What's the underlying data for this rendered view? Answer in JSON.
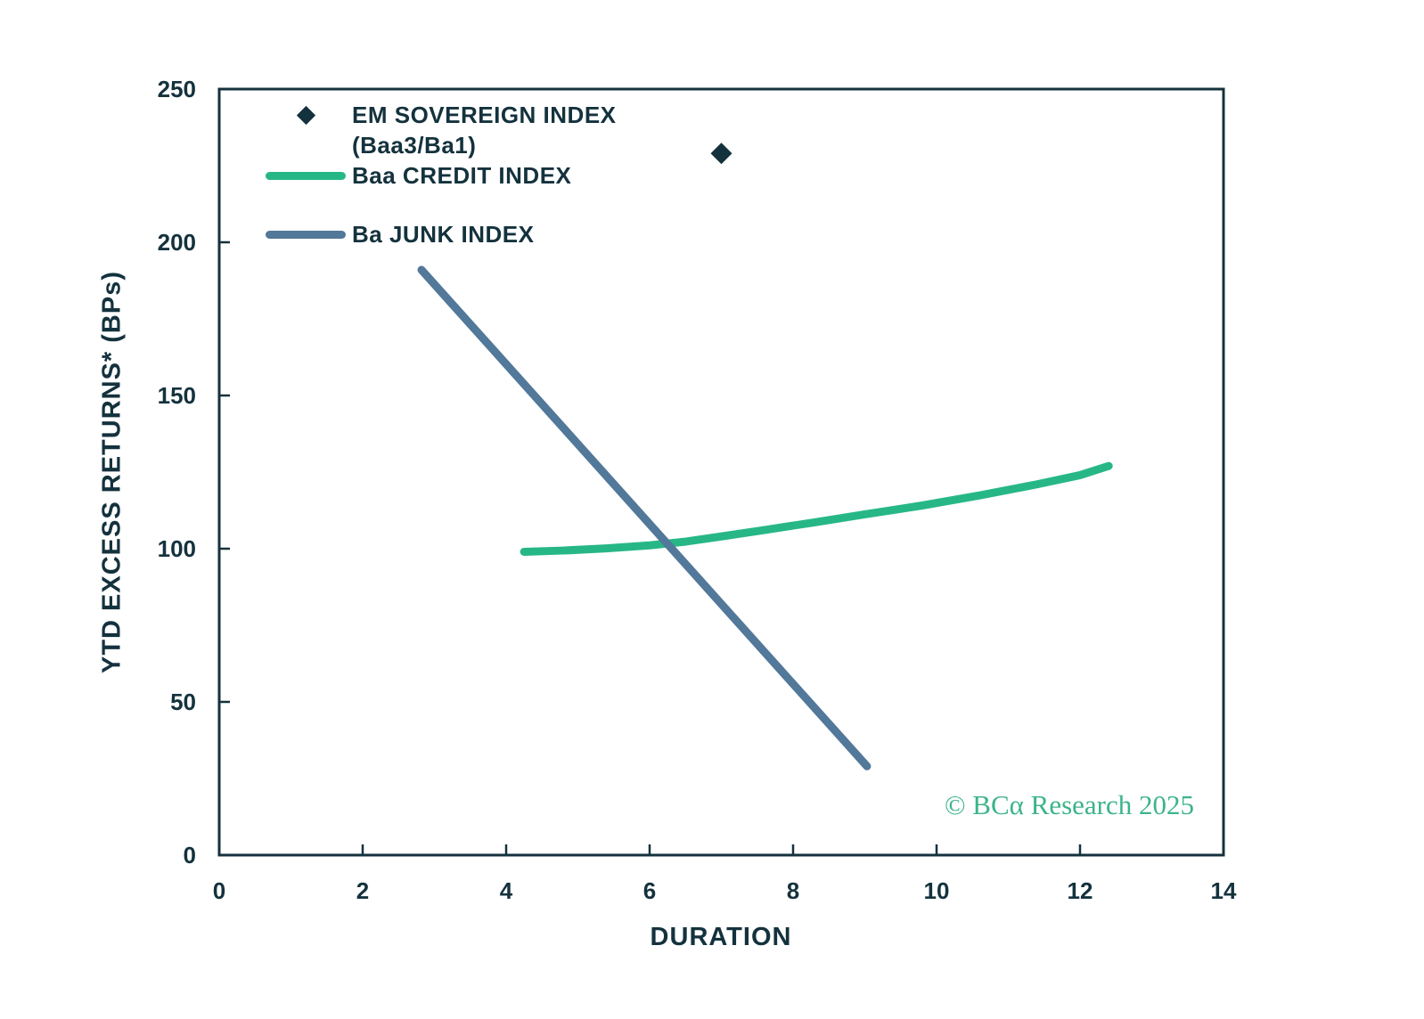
{
  "colors": {
    "ink": "#14323d",
    "green": "#27b787",
    "slate": "#52789a",
    "watermark_green": "#3cb489",
    "background": "#ffffff"
  },
  "chart_data": {
    "type": "line",
    "title": "",
    "xlabel": "DURATION",
    "ylabel": "YTD EXCESS RETURNS* (BPs)",
    "xlim": [
      0,
      14
    ],
    "ylim": [
      0,
      250
    ],
    "x_ticks": [
      0,
      2,
      4,
      6,
      8,
      10,
      12,
      14
    ],
    "y_ticks": [
      0,
      50,
      100,
      150,
      200,
      250
    ],
    "grid": false,
    "legend_position": "upper-left-inside",
    "watermark": "© BCα Research 2025",
    "series": [
      {
        "name": "EM SOVEREIGN INDEX (Baa3/Ba1)",
        "type": "scatter",
        "marker": "diamond",
        "color": "#14323d",
        "points": [
          [
            7.0,
            229
          ]
        ]
      },
      {
        "name": "Baa CREDIT INDEX",
        "type": "line",
        "color": "#27b787",
        "points": [
          [
            4.25,
            99
          ],
          [
            4.8,
            99.4
          ],
          [
            5.4,
            100.1
          ],
          [
            6.0,
            101.1
          ],
          [
            6.5,
            102.3
          ],
          [
            7.0,
            104.0
          ],
          [
            7.6,
            106.1
          ],
          [
            8.3,
            108.6
          ],
          [
            9.0,
            111.2
          ],
          [
            9.8,
            114.1
          ],
          [
            10.6,
            117.4
          ],
          [
            11.4,
            121.0
          ],
          [
            12.0,
            124.0
          ],
          [
            12.4,
            127.0
          ]
        ]
      },
      {
        "name": "Ba JUNK INDEX",
        "type": "line",
        "color": "#52789a",
        "points": [
          [
            2.82,
            191
          ],
          [
            9.03,
            29
          ]
        ]
      }
    ]
  },
  "legend": {
    "items": [
      {
        "line1": "EM SOVEREIGN INDEX",
        "line2": "(Baa3/Ba1)",
        "marker": "diamond"
      },
      {
        "line1": "Baa CREDIT INDEX",
        "line2": "",
        "marker": "line-green"
      },
      {
        "line1": "Ba JUNK INDEX",
        "line2": "",
        "marker": "line-slate"
      }
    ]
  }
}
